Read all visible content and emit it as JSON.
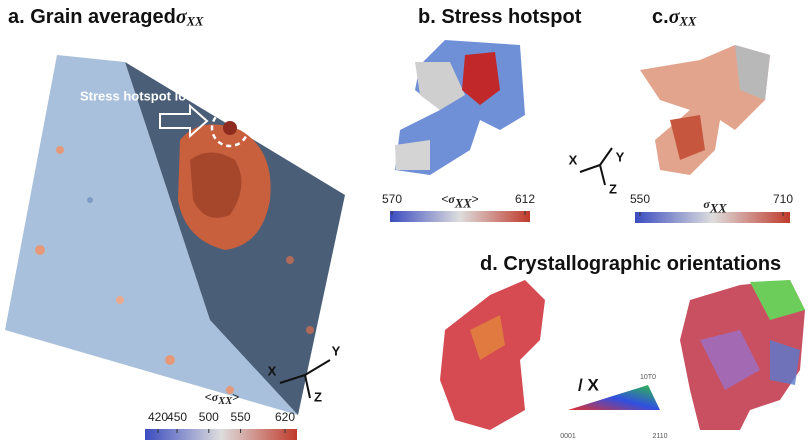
{
  "panels": [
    {
      "title": {
        "label": "a. Grain averaged",
        "symbol": "σ",
        "subscript": "XX"
      },
      "annotation": "Stress hotspot location",
      "colorbar": {
        "label": {
          "open": "<",
          "symbol": "σ",
          "subscript": "XX",
          "close": ">"
        },
        "ticks": [
          420,
          450,
          500,
          550,
          620
        ]
      },
      "axes": [
        "X",
        "Y",
        "Z"
      ]
    },
    {
      "title": {
        "label": "b. Stress hotspot"
      },
      "colorbar": {
        "label": {
          "open": "<",
          "symbol": "σ",
          "subscript": "XX",
          "close": ">"
        },
        "ticks": [
          570,
          612
        ]
      }
    },
    {
      "title": {
        "label": "c.",
        "symbol": "σ",
        "subscript": "XX"
      },
      "colorbar": {
        "label": {
          "symbol": "σ",
          "subscript": "XX"
        },
        "ticks": [
          550,
          710
        ]
      },
      "axes": [
        "X",
        "Y",
        "Z"
      ]
    },
    {
      "title": {
        "label": "d. Crystallographic orientations"
      },
      "legend": {
        "label": "/ X",
        "corners": [
          "0001",
          "2110",
          "10T0"
        ]
      }
    }
  ]
}
